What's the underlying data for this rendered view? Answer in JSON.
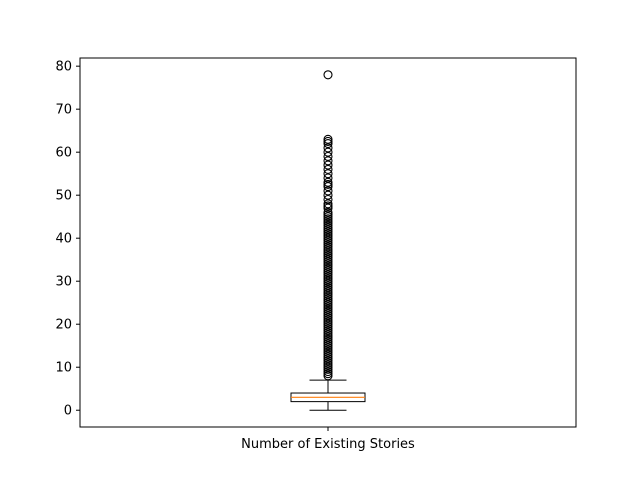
{
  "chart_data": {
    "type": "box",
    "categories": [
      "Number of Existing Stories"
    ],
    "ylim": [
      -3.9,
      81.9
    ],
    "yticks": [
      0,
      10,
      20,
      30,
      40,
      50,
      60,
      70,
      80
    ],
    "ytick_labels": [
      "0",
      "10",
      "20",
      "30",
      "40",
      "50",
      "60",
      "70",
      "80"
    ],
    "grid": false,
    "colors": {
      "median": "#ff7f0e",
      "box": "#000000",
      "flier": "#000000"
    },
    "boxes": [
      {
        "label": "Number of Existing Stories",
        "whislo": 0,
        "q1": 2,
        "median": 3,
        "q3": 4,
        "whishi": 7,
        "fliers": [
          8,
          8.5,
          9,
          9.5,
          10,
          10.5,
          11,
          11.5,
          12,
          12.5,
          13,
          13.5,
          14,
          14.5,
          15,
          15.5,
          16,
          16.5,
          17,
          17.5,
          18,
          18.5,
          19,
          19.5,
          20,
          20.5,
          21,
          21.5,
          22,
          22.5,
          23,
          23.5,
          24,
          24.5,
          25,
          25.5,
          26,
          26.5,
          27,
          27.5,
          28,
          28.5,
          29,
          29.5,
          30,
          30.5,
          31,
          31.5,
          32,
          32.5,
          33,
          33.5,
          34,
          34.5,
          35,
          35.5,
          36,
          36.5,
          37,
          37.5,
          38,
          38.5,
          39,
          39.5,
          40,
          40.5,
          41,
          41.5,
          42,
          42.5,
          43,
          43.5,
          44,
          44.5,
          45,
          45.5,
          46,
          47,
          47.5,
          48,
          49,
          50,
          51,
          52,
          52.5,
          53,
          54,
          55,
          56,
          57,
          58,
          59,
          60,
          61,
          62,
          62.5,
          63,
          78
        ]
      }
    ]
  }
}
